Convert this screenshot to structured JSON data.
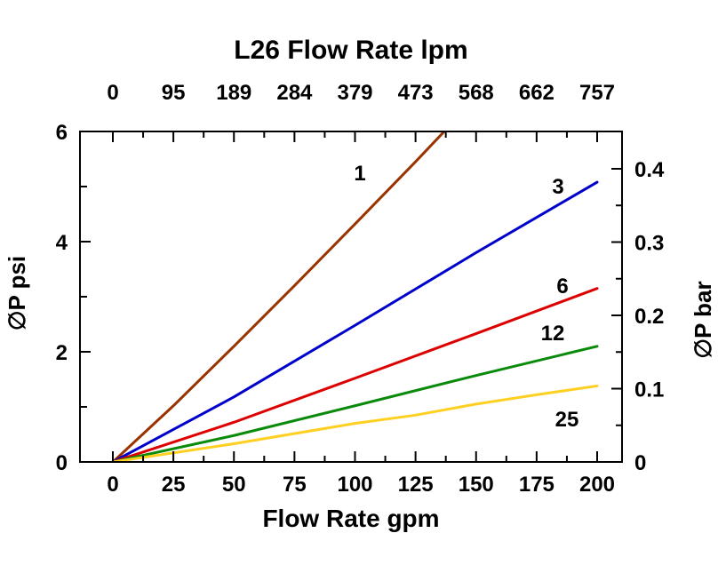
{
  "chart_data": {
    "type": "line",
    "title": "L26 Flow Rate lpm",
    "xlabel": "Flow Rate gpm",
    "ylabel_left": "∅P psi",
    "ylabel_right": "∅P bar",
    "grid": false,
    "x_axis_bottom": {
      "unit": "gpm",
      "tick_labels": [
        "0",
        "25",
        "50",
        "75",
        "100",
        "125",
        "150",
        "175",
        "200"
      ],
      "tick_values": [
        0,
        25,
        50,
        75,
        100,
        125,
        150,
        175,
        200
      ],
      "range": [
        0,
        200
      ]
    },
    "x_axis_top": {
      "unit": "lpm",
      "tick_labels": [
        "0",
        "95",
        "189",
        "284",
        "379",
        "473",
        "568",
        "662",
        "757"
      ]
    },
    "y_axis_left": {
      "unit": "psi",
      "tick_labels": [
        "0",
        "2",
        "4",
        "6"
      ],
      "tick_values": [
        0,
        2,
        4,
        6
      ],
      "range": [
        0,
        6
      ]
    },
    "y_axis_right": {
      "unit": "bar",
      "tick_labels": [
        "0",
        "0.1",
        "0.2",
        "0.3",
        "0.4"
      ]
    },
    "series": [
      {
        "name": "1",
        "color": "#993300",
        "x": [
          0,
          25,
          50,
          75,
          100,
          125,
          139
        ],
        "y": [
          0,
          1.02,
          2.1,
          3.2,
          4.32,
          5.45,
          6.1
        ]
      },
      {
        "name": "3",
        "color": "#0000CC",
        "x": [
          0,
          50,
          100,
          150,
          200
        ],
        "y": [
          0,
          1.18,
          2.48,
          3.8,
          5.08
        ]
      },
      {
        "name": "6",
        "color": "#DD0000",
        "x": [
          0,
          50,
          100,
          150,
          200
        ],
        "y": [
          0,
          0.72,
          1.52,
          2.33,
          3.15
        ]
      },
      {
        "name": "12",
        "color": "#0A8A0A",
        "x": [
          0,
          50,
          100,
          150,
          200
        ],
        "y": [
          0,
          0.48,
          1.02,
          1.57,
          2.1
        ]
      },
      {
        "name": "25",
        "color": "#FFD021",
        "x": [
          0,
          50,
          100,
          125,
          150,
          175,
          200
        ],
        "y": [
          0,
          0.33,
          0.7,
          0.85,
          1.05,
          1.22,
          1.38
        ]
      }
    ]
  }
}
